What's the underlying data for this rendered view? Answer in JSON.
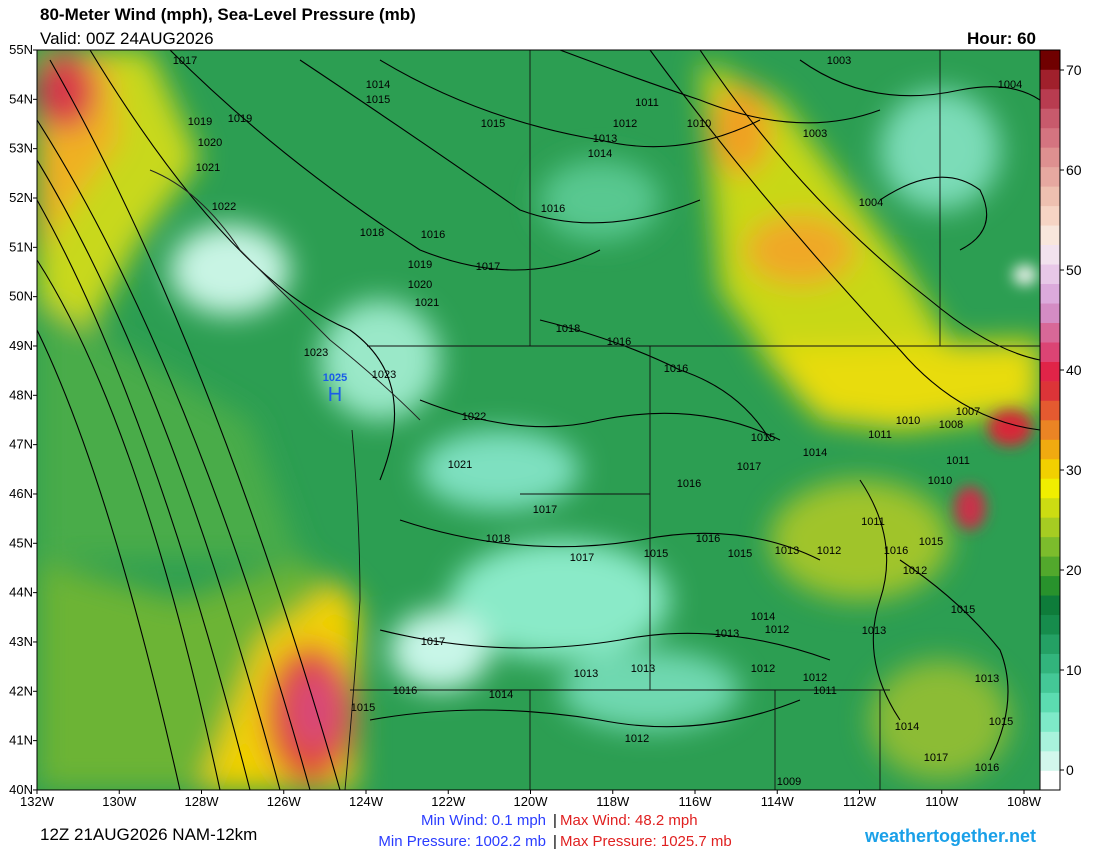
{
  "header": {
    "title": "80-Meter Wind (mph), Sea-Level Pressure (mb)",
    "valid": "Valid: 00Z 24AUG2026",
    "hour": "Hour: 60"
  },
  "map": {
    "lat_labels": [
      "55N",
      "54N",
      "53N",
      "52N",
      "51N",
      "50N",
      "49N",
      "48N",
      "47N",
      "46N",
      "45N",
      "44N",
      "43N",
      "42N",
      "41N",
      "40N"
    ],
    "lon_labels": [
      "132W",
      "130W",
      "128W",
      "126W",
      "124W",
      "122W",
      "120W",
      "118W",
      "116W",
      "114W",
      "112W",
      "110W",
      "108W"
    ],
    "isobars": [
      "1017",
      "1014",
      "1015",
      "1019",
      "1019",
      "1020",
      "1021",
      "1022",
      "1018",
      "1016",
      "1019",
      "1017",
      "1020",
      "1021",
      "1023",
      "1023",
      "1022",
      "1021",
      "1015",
      "1013",
      "1012",
      "1014",
      "1011",
      "1010",
      "1016",
      "1018",
      "1016",
      "1016",
      "1003",
      "1003",
      "1004",
      "1004",
      "1015",
      "1017",
      "1014",
      "1011",
      "1010",
      "1008",
      "1007",
      "1011",
      "1010",
      "1016",
      "1017",
      "1018",
      "1017",
      "1015",
      "1016",
      "1015",
      "1013",
      "1012",
      "1011",
      "1016",
      "1015",
      "1012",
      "1015",
      "1014",
      "1013",
      "1012",
      "1013",
      "1013",
      "1012",
      "1012",
      "1011",
      "1017",
      "1013",
      "1013",
      "1016",
      "1014",
      "1015",
      "1012",
      "1009",
      "1014",
      "1015",
      "1017",
      "1016"
    ],
    "high": {
      "label": "H",
      "pressure": "1025"
    }
  },
  "colorbar": {
    "range": [
      -2,
      72
    ],
    "ticks": [
      0,
      10,
      20,
      30,
      40,
      50,
      60,
      70
    ],
    "colors": [
      "#ffffff",
      "#d2f7ec",
      "#a8f2dc",
      "#7eeac8",
      "#5cdcb0",
      "#44c896",
      "#32b47c",
      "#24a064",
      "#168c4c",
      "#0e7c3a",
      "#28922c",
      "#52a82c",
      "#7cbc2c",
      "#a6cc22",
      "#ccdc12",
      "#f0ee00",
      "#f2d000",
      "#f0aa10",
      "#ea8424",
      "#e45a30",
      "#dc3438",
      "#e02448",
      "#dc4474",
      "#d86898",
      "#d48cc4",
      "#dcaadc",
      "#e8c8e8",
      "#f2e2ee",
      "#f8e6dc",
      "#f6d4c4",
      "#eec0b0",
      "#e6a8a0",
      "#de9090",
      "#d47480",
      "#c85a6c",
      "#b83c50",
      "#a0202c",
      "#700000"
    ]
  },
  "footer": {
    "run": "12Z 21AUG2026 NAM-12km",
    "min_wind": "Min Wind:   0.1 mph",
    "max_wind": "Max Wind:  48.2 mph",
    "min_pressure": "Min Pressure: 1002.2 mb",
    "max_pressure": "Max Pressure: 1025.7 mb",
    "site": "weathertogether.net"
  }
}
